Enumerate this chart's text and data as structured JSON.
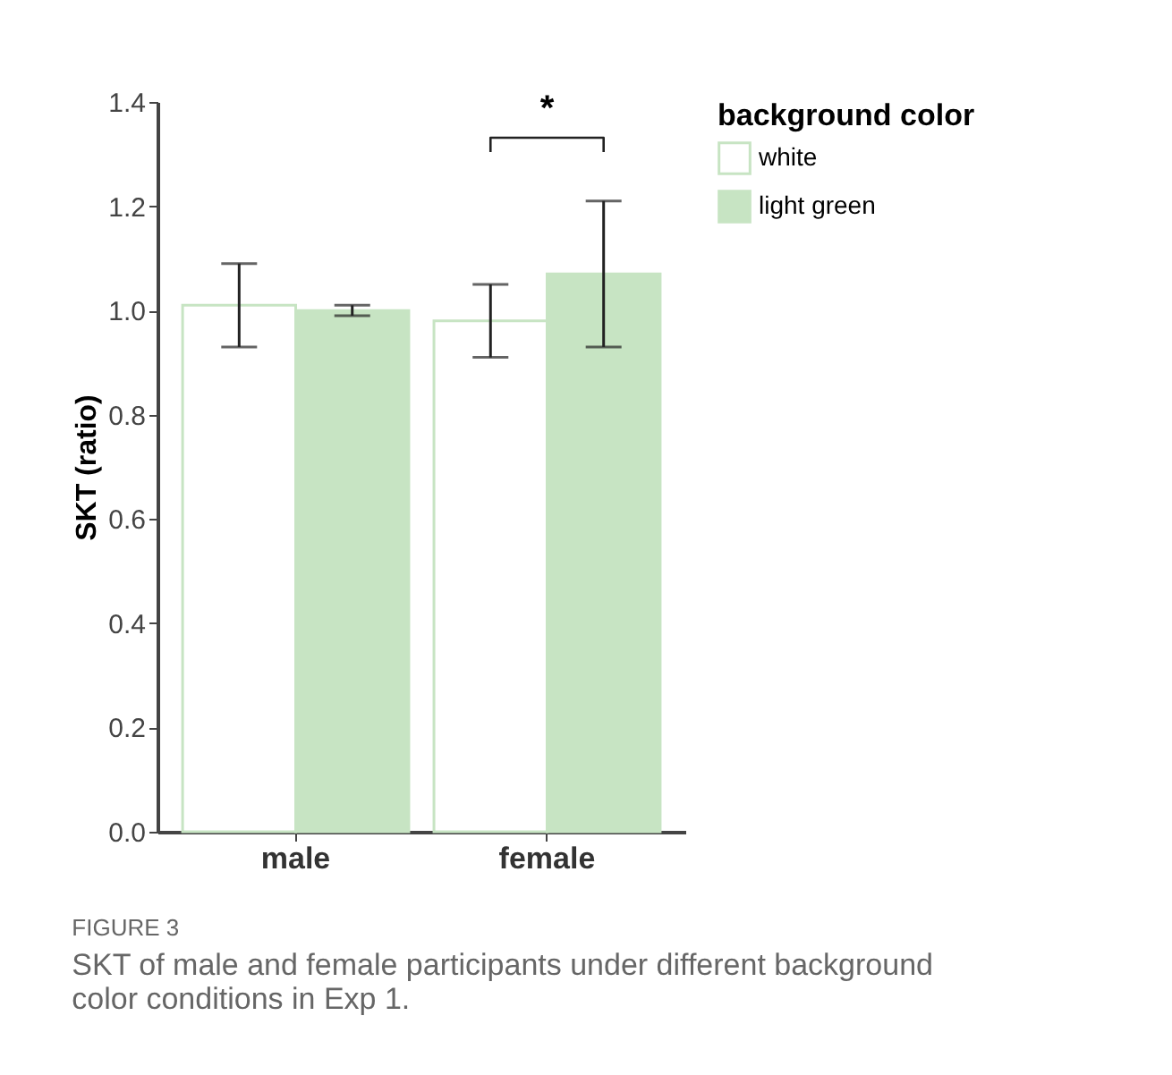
{
  "chart_data": {
    "type": "bar",
    "ylabel": "SKT (ratio)",
    "legend_title": "background color",
    "legend": "right",
    "grid": false,
    "categories": [
      "male",
      "female"
    ],
    "series": [
      {
        "name": "white",
        "color": "#ffffff",
        "values": [
          1.01,
          0.98
        ],
        "errors": [
          [
            0.93,
            1.09
          ],
          [
            0.91,
            1.05
          ]
        ]
      },
      {
        "name": "light green",
        "color": "#c7e4c3",
        "values": [
          1.0,
          1.07
        ],
        "errors": [
          [
            0.99,
            1.01
          ],
          [
            0.93,
            1.21
          ]
        ]
      }
    ],
    "ylim": [
      0,
      1.4
    ],
    "yticks": [
      {
        "value": 0,
        "label": "0.0"
      },
      0.2,
      0.4,
      0.6,
      0.8,
      {
        "value": 1,
        "label": "1.0"
      },
      1.2,
      1.4
    ],
    "annotations": [
      "*",
      "FIGURE 3",
      "SKT of male and female participants under different background color conditions in Exp 1."
    ]
  }
}
